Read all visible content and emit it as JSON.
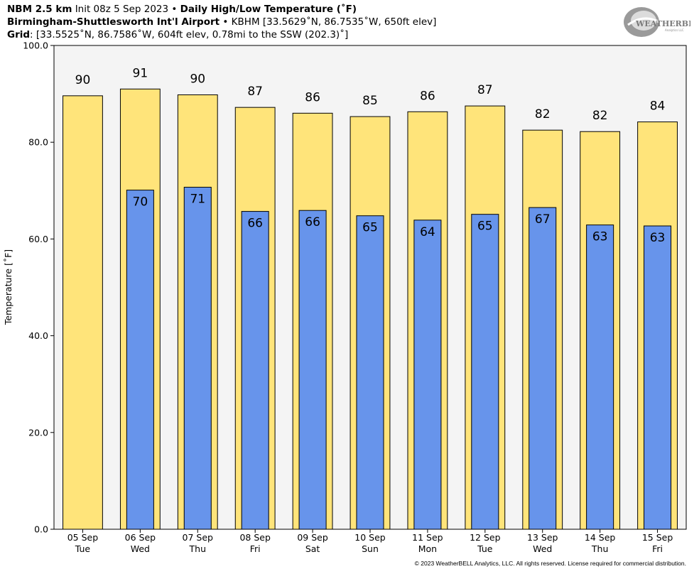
{
  "header": {
    "model": "NBM 2.5 km",
    "init": "Init 08z 5 Sep 2023",
    "bullet": "•",
    "product": "Daily High/Low Temperature (˚F)",
    "station_name": "Birmingham-Shuttlesworth Int'l Airport",
    "station_info": "KBHM [33.5629˚N, 86.7535˚W, 650ft elev]",
    "grid_label": "Grid",
    "grid_info": ": [33.5525˚N, 86.7586˚W, 604ft elev, 0.78mi to the SSW (202.3)˚]"
  },
  "logo": {
    "text_main": "WEATHERBELL",
    "text_sub": "Analytics LLC",
    "icon": "weatherbell-swirl-logo"
  },
  "copyright": "© 2023 WeatherBELL Analytics, LLC. All rights reserved. License required for commercial distribution.",
  "colors": {
    "high": "#ffe47a",
    "low": "#6794eb",
    "plot_bg": "#f4f4f4",
    "outline": "#000000"
  },
  "chart_data": {
    "type": "bar",
    "ylabel": "Temperature [˚F]",
    "ylim": [
      0,
      100
    ],
    "yticks": [
      "0.0",
      "20.0",
      "40.0",
      "60.0",
      "80.0",
      "100.0"
    ],
    "ytick_values": [
      0,
      20,
      40,
      60,
      80,
      100
    ],
    "categories": [
      [
        "05 Sep",
        "Tue"
      ],
      [
        "06 Sep",
        "Wed"
      ],
      [
        "07 Sep",
        "Thu"
      ],
      [
        "08 Sep",
        "Fri"
      ],
      [
        "09 Sep",
        "Sat"
      ],
      [
        "10 Sep",
        "Sun"
      ],
      [
        "11 Sep",
        "Mon"
      ],
      [
        "12 Sep",
        "Tue"
      ],
      [
        "13 Sep",
        "Wed"
      ],
      [
        "14 Sep",
        "Thu"
      ],
      [
        "15 Sep",
        "Fri"
      ]
    ],
    "series": [
      {
        "key": "high",
        "values": [
          89.6,
          91.0,
          89.8,
          87.2,
          86.0,
          85.3,
          86.3,
          87.5,
          82.5,
          82.2,
          84.2
        ],
        "labels": [
          "90",
          "91",
          "90",
          "87",
          "86",
          "85",
          "86",
          "87",
          "82",
          "82",
          "84"
        ]
      },
      {
        "key": "low",
        "values": [
          null,
          70.1,
          70.7,
          65.7,
          65.9,
          64.8,
          63.9,
          65.1,
          66.5,
          62.9,
          62.7
        ],
        "labels": [
          "",
          "70",
          "71",
          "66",
          "66",
          "65",
          "64",
          "65",
          "67",
          "63",
          "63"
        ]
      }
    ]
  }
}
